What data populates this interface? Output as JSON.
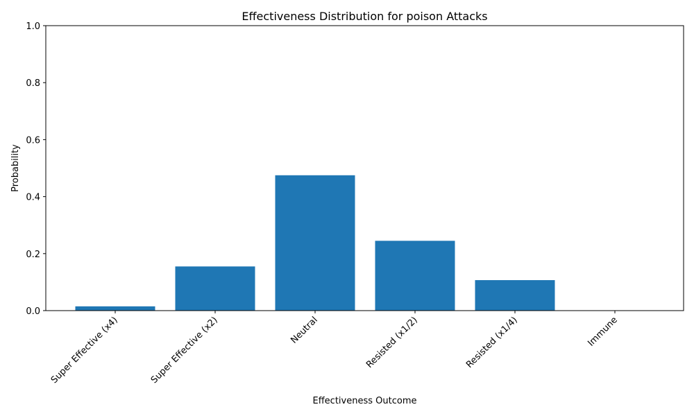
{
  "chart_data": {
    "type": "bar",
    "title": "Effectiveness Distribution for poison Attacks",
    "xlabel": "Effectiveness Outcome",
    "ylabel": "Probability",
    "categories": [
      "Super Effective (x4)",
      "Super Effective (x2)",
      "Neutral",
      "Resisted (x1/2)",
      "Resisted (x1/4)",
      "Immune"
    ],
    "values": [
      0.015,
      0.155,
      0.475,
      0.245,
      0.107,
      0.0
    ],
    "ylim": [
      0,
      1.0
    ],
    "yticks": [
      0.0,
      0.2,
      0.4,
      0.6,
      0.8,
      1.0
    ],
    "ytick_labels": [
      "0.0",
      "0.2",
      "0.4",
      "0.6",
      "0.8",
      "1.0"
    ],
    "bar_color": "#1f77b4",
    "grid": false,
    "legend": "none"
  }
}
